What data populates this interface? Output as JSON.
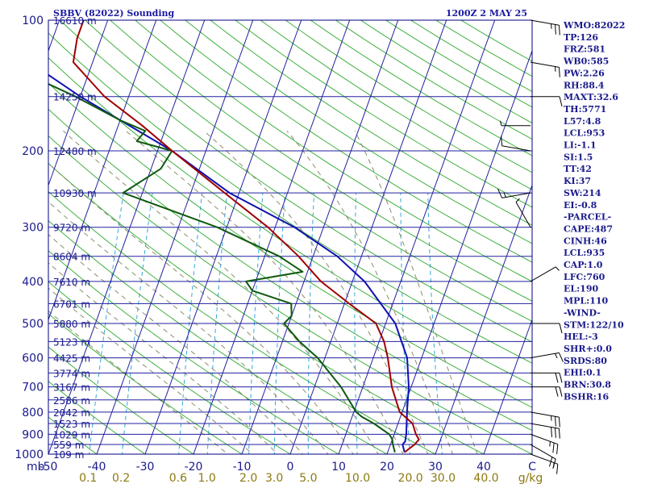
{
  "chart_data": {
    "type": "skew-t sounding",
    "title_left": "SBBV (82022) Sounding",
    "title_right": "1200Z  2 MAY 25",
    "pressure_axis": {
      "label": "mb",
      "ticks": [
        100,
        200,
        300,
        400,
        500,
        600,
        700,
        800,
        900,
        1000
      ],
      "range": [
        1000,
        100
      ]
    },
    "temperature_axis": {
      "ticks": [
        "-50",
        "-40",
        "-30",
        "-20",
        "-10",
        "0",
        "10",
        "20",
        "30",
        "40",
        "C"
      ],
      "range": [
        -50,
        50
      ]
    },
    "mixing_ratio_axis": {
      "ticks": [
        "0.1",
        "0.2",
        "0.6",
        "1.0",
        "2.0",
        "3.0",
        "5.0",
        "10.0",
        "20.0",
        "30.0",
        "40.0",
        "g/kg"
      ]
    },
    "height_labels": [
      {
        "p": 100,
        "text": "16610 m"
      },
      {
        "p": 150,
        "text": "14250 m"
      },
      {
        "p": 200,
        "text": "12480 m"
      },
      {
        "p": 250,
        "text": "10930 m"
      },
      {
        "p": 300,
        "text": "9720 m"
      },
      {
        "p": 350,
        "text": "8604 m"
      },
      {
        "p": 400,
        "text": "7610 m"
      },
      {
        "p": 450,
        "text": "6701 m"
      },
      {
        "p": 500,
        "text": "5880 m"
      },
      {
        "p": 550,
        "text": "5123 m"
      },
      {
        "p": 600,
        "text": "4425 m"
      },
      {
        "p": 650,
        "text": "3774 m"
      },
      {
        "p": 700,
        "text": "3167 m"
      },
      {
        "p": 750,
        "text": "2586 m"
      },
      {
        "p": 800,
        "text": "2042 m"
      },
      {
        "p": 850,
        "text": "1523 m"
      },
      {
        "p": 900,
        "text": "1029 m"
      },
      {
        "p": 950,
        "text": "559 m"
      },
      {
        "p": 1000,
        "text": "109 m"
      }
    ],
    "temperature_series": {
      "name": "",
      "color": "#a00000",
      "points": [
        [
          990,
          23.5
        ],
        [
          950,
          25
        ],
        [
          925,
          25.5
        ],
        [
          900,
          24.5
        ],
        [
          850,
          23
        ],
        [
          800,
          19.5
        ],
        [
          700,
          16
        ],
        [
          600,
          13
        ],
        [
          550,
          11
        ],
        [
          500,
          8
        ],
        [
          450,
          1
        ],
        [
          400,
          -6.5
        ],
        [
          350,
          -13
        ],
        [
          300,
          -21.5
        ],
        [
          250,
          -33
        ],
        [
          200,
          -47
        ],
        [
          175,
          -55
        ],
        [
          150,
          -65
        ],
        [
          125,
          -74
        ],
        [
          110,
          -75
        ],
        [
          100,
          -75
        ]
      ]
    },
    "dewpoint_series": {
      "name": "",
      "color": "#0e5a0e",
      "points": [
        [
          990,
          21.5
        ],
        [
          950,
          20.5
        ],
        [
          925,
          20
        ],
        [
          900,
          19
        ],
        [
          850,
          15
        ],
        [
          820,
          12
        ],
        [
          800,
          10.5
        ],
        [
          700,
          5.5
        ],
        [
          600,
          -1.5
        ],
        [
          550,
          -6.5
        ],
        [
          500,
          -11
        ],
        [
          480,
          -10
        ],
        [
          450,
          -11
        ],
        [
          420,
          -20
        ],
        [
          400,
          -22
        ],
        [
          380,
          -11
        ],
        [
          350,
          -17
        ],
        [
          300,
          -32
        ],
        [
          250,
          -54
        ],
        [
          220,
          -48
        ],
        [
          200,
          -47
        ],
        [
          190,
          -55
        ],
        [
          180,
          -54
        ],
        [
          170,
          -60
        ],
        [
          150,
          -71
        ],
        [
          130,
          -85
        ],
        [
          115,
          -87
        ],
        [
          100,
          -86
        ]
      ]
    },
    "parcel_series": {
      "name": "",
      "color": "#1010b0",
      "points": [
        [
          990,
          23.5
        ],
        [
          950,
          22.5
        ],
        [
          935,
          22.8
        ],
        [
          900,
          22.5
        ],
        [
          800,
          21
        ],
        [
          700,
          19.5
        ],
        [
          600,
          17
        ],
        [
          500,
          12
        ],
        [
          400,
          2.5
        ],
        [
          350,
          -5
        ],
        [
          300,
          -16
        ],
        [
          250,
          -32
        ],
        [
          200,
          -47
        ],
        [
          150,
          -70
        ],
        [
          125,
          -83
        ],
        [
          100,
          -92
        ]
      ]
    },
    "wind_barbs": [
      {
        "p": 100,
        "dir": 100,
        "spd": 25
      },
      {
        "p": 125,
        "dir": 100,
        "spd": 15
      },
      {
        "p": 150,
        "dir": 90,
        "spd": 10
      },
      {
        "p": 175,
        "dir": 270,
        "spd": 5
      },
      {
        "p": 200,
        "dir": 280,
        "spd": 10
      },
      {
        "p": 250,
        "dir": 260,
        "spd": 15
      },
      {
        "p": 300,
        "dir": 330,
        "spd": 5
      },
      {
        "p": 400,
        "dir": 60,
        "spd": 5
      },
      {
        "p": 500,
        "dir": 90,
        "spd": 10
      },
      {
        "p": 600,
        "dir": 80,
        "spd": 15
      },
      {
        "p": 650,
        "dir": 90,
        "spd": 20
      },
      {
        "p": 700,
        "dir": 90,
        "spd": 20
      },
      {
        "p": 800,
        "dir": 100,
        "spd": 25
      },
      {
        "p": 850,
        "dir": 100,
        "spd": 30
      },
      {
        "p": 900,
        "dir": 110,
        "spd": 25
      },
      {
        "p": 950,
        "dir": 120,
        "spd": 20
      },
      {
        "p": 1000,
        "dir": 110,
        "spd": 15
      }
    ],
    "indices": [
      "WMO:82022",
      "TP:126",
      "FRZ:581",
      "WB0:585",
      "PW:2.26",
      "RH:88.4",
      "MAXT:32.6",
      "TH:5771",
      "L57:4.8",
      "LCL:953",
      "LI:-1.1",
      "SI:1.5",
      "TT:42",
      "KI:37",
      "SW:214",
      "EI:-0.8",
      "-PARCEL-",
      "CAPE:487",
      "CINH:46",
      "LCL:935",
      "CAP:1.0",
      "LFC:760",
      "EL:190",
      "MPL:110",
      "-WIND-",
      "STM:122/10",
      "HEL:-3",
      "SHR+:0.0",
      "SRDS:80",
      "EHI:0.1",
      "BRN:30.8",
      "BSHR:16"
    ],
    "colors": {
      "isobar": "#2020a0",
      "isotherm": "#2020a0",
      "dry_adiabat": "#40b040",
      "moist_adiabat": "#8c8c6c",
      "mixing_ratio": "#30a8d8",
      "frame": "#000080"
    }
  }
}
